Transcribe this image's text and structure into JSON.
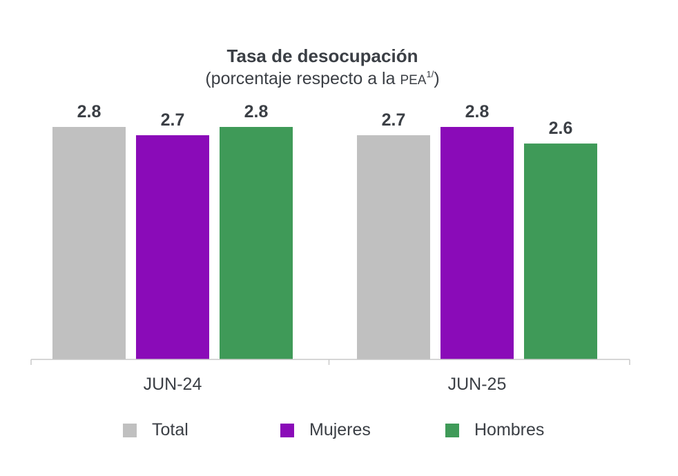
{
  "chart_data": {
    "type": "bar",
    "title": "Tasa de desocupación",
    "subtitle": {
      "prefix": "(porcentaje respecto a la ",
      "abbr": "PEA",
      "note": "1/",
      "suffix": ")"
    },
    "categories": [
      "JUN-24",
      "JUN-25"
    ],
    "series": [
      {
        "name": "Total",
        "color": "#c0c0c0",
        "values": [
          2.8,
          2.7
        ]
      },
      {
        "name": "Mujeres",
        "color": "#8a0bb8",
        "values": [
          2.7,
          2.8
        ]
      },
      {
        "name": "Hombres",
        "color": "#3f9a58",
        "values": [
          2.8,
          2.6
        ]
      }
    ],
    "data_labels": true,
    "ylim": [
      0,
      2.8
    ],
    "grid": false,
    "legend_position": "bottom"
  }
}
